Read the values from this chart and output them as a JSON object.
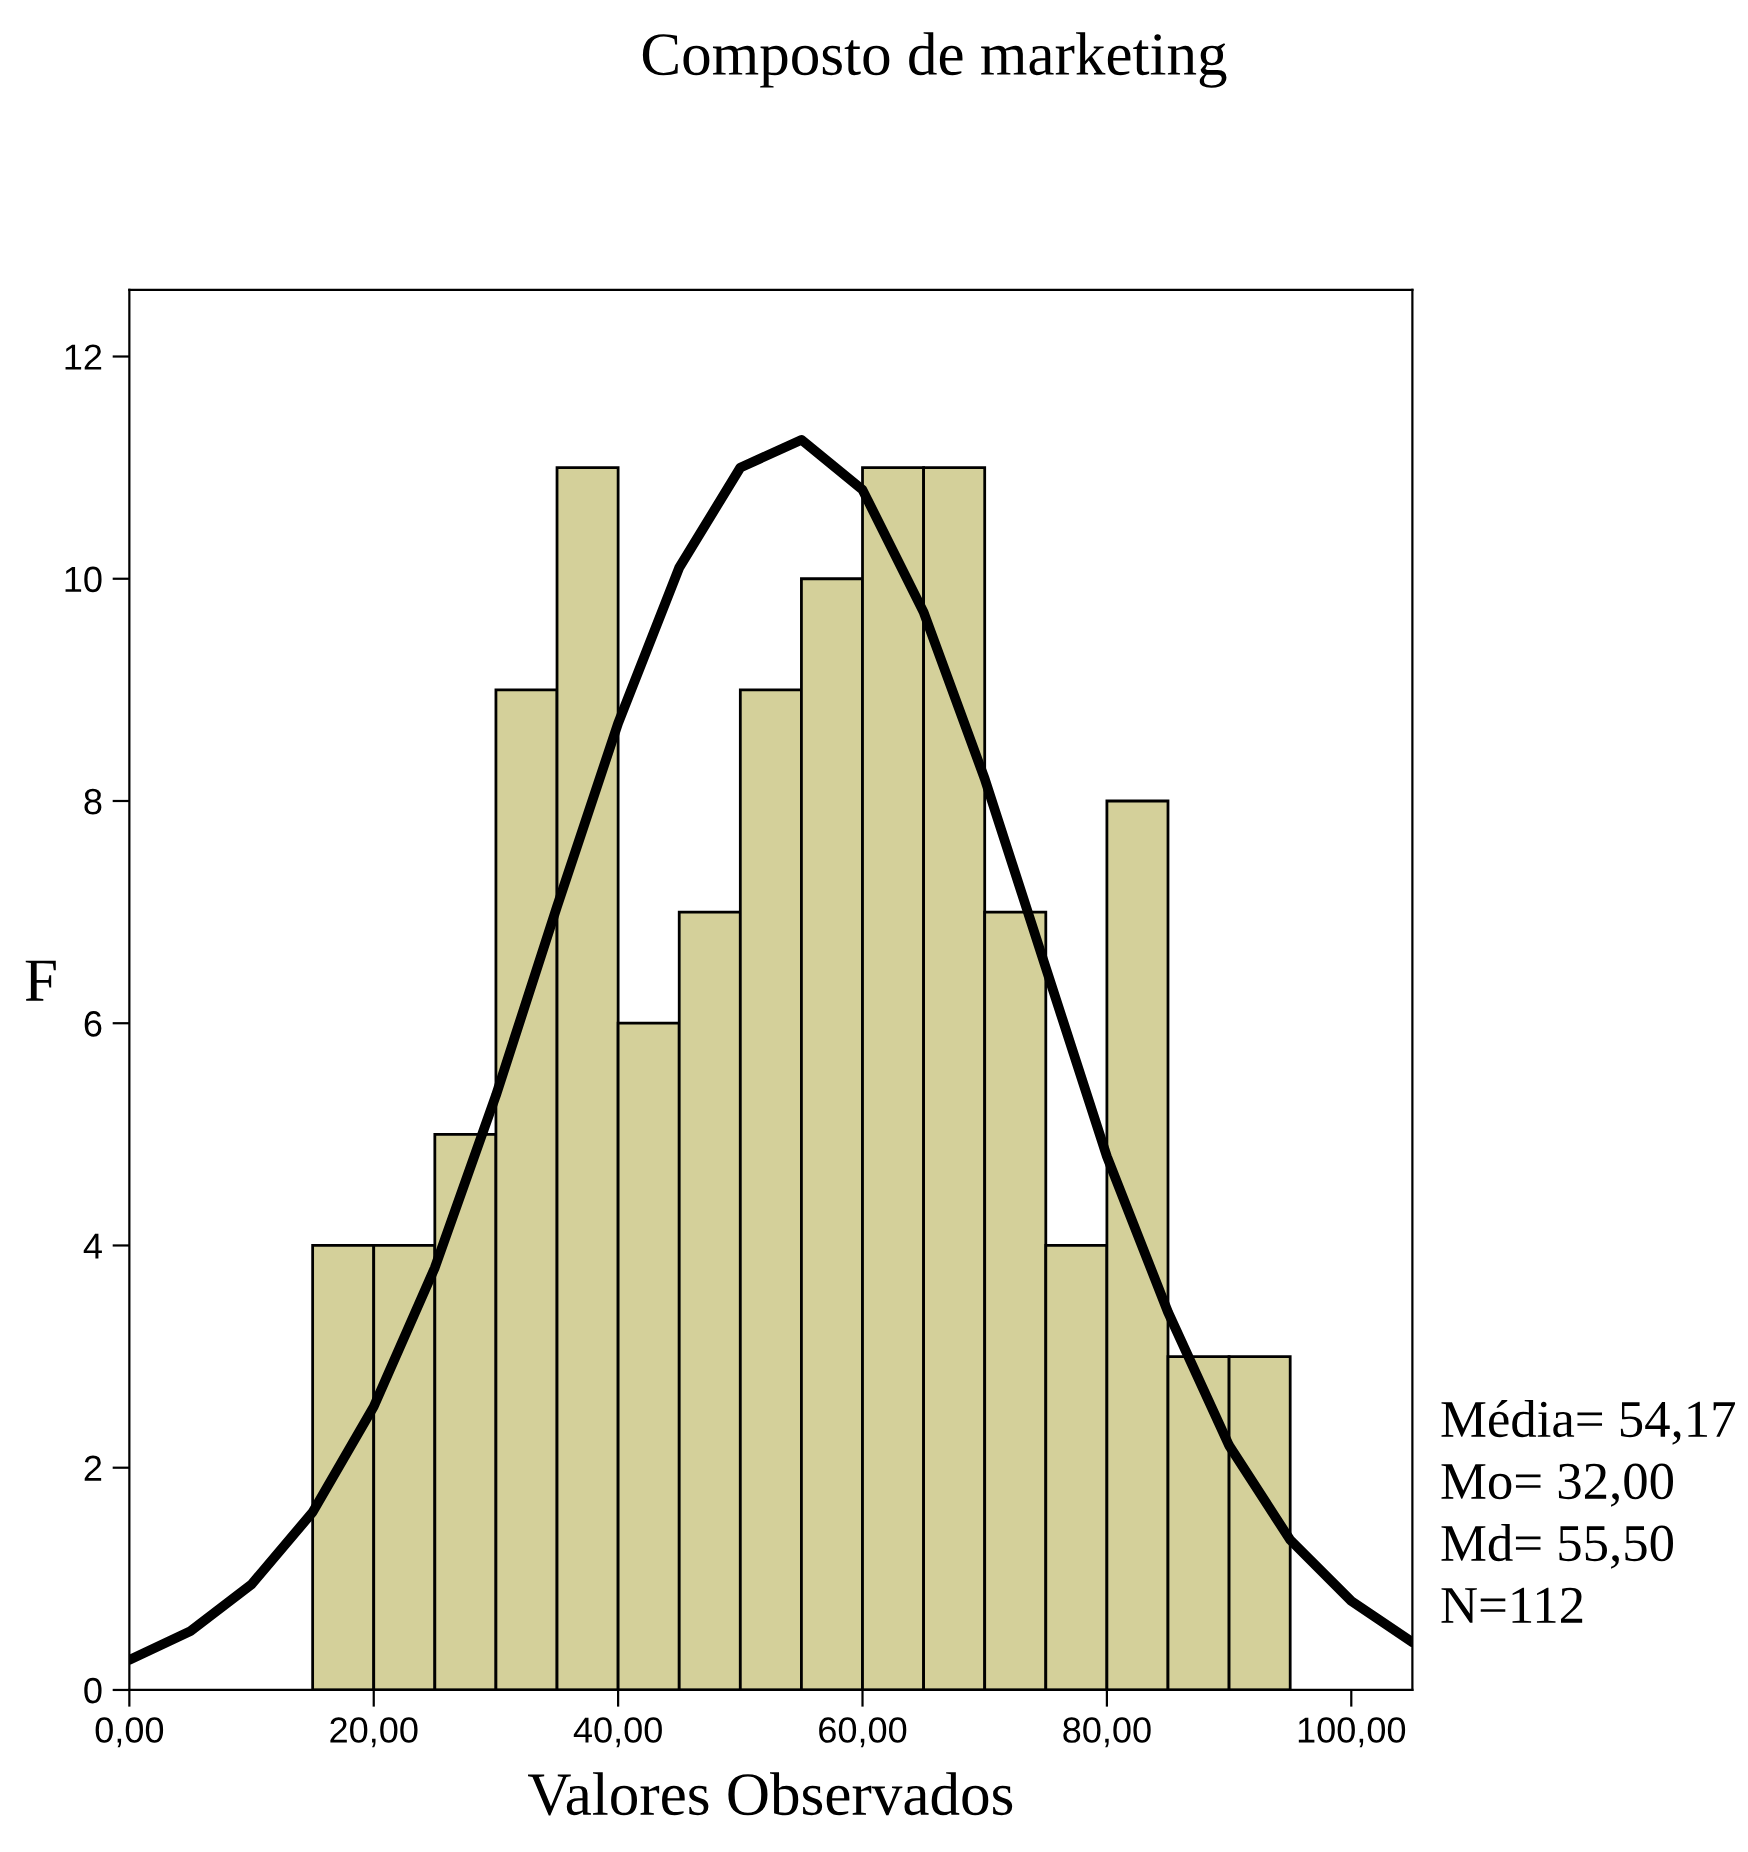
{
  "chart_data": {
    "type": "histogram",
    "title": "Composto de marketing",
    "xlabel": "Valores Observados",
    "ylabel": "F",
    "series": [
      {
        "type": "histogram",
        "color": "#d4d09a",
        "bins": [
          15,
          20,
          25,
          30,
          35,
          40,
          45,
          50,
          55,
          60,
          65,
          70,
          75,
          80,
          85,
          90,
          95
        ],
        "values": [
          4,
          4,
          5,
          9,
          11,
          6,
          7,
          9,
          10,
          11,
          11,
          7,
          4,
          8,
          3,
          3
        ]
      },
      {
        "type": "line",
        "color": "#000000",
        "x": [
          0,
          5,
          10,
          15,
          20,
          25,
          30,
          35,
          40,
          45,
          50,
          55,
          60,
          65,
          70,
          75,
          80,
          85,
          90,
          95,
          100,
          105
        ],
        "values": [
          0.27,
          0.53,
          0.95,
          1.6,
          2.55,
          3.8,
          5.35,
          7.05,
          8.7,
          10.1,
          11.0,
          11.25,
          10.8,
          9.7,
          8.2,
          6.5,
          4.8,
          3.4,
          2.2,
          1.35,
          0.8,
          0.43
        ]
      }
    ],
    "xlim": [
      0,
      105
    ],
    "ylim": [
      0,
      12.6
    ],
    "xticks": [
      {
        "value": 0,
        "label": "0,00"
      },
      {
        "value": 20,
        "label": "20,00"
      },
      {
        "value": 40,
        "label": "40,00"
      },
      {
        "value": 60,
        "label": "60,00"
      },
      {
        "value": 80,
        "label": "80,00"
      },
      {
        "value": 100,
        "label": "100,00"
      }
    ],
    "yticks": [
      0,
      2,
      4,
      6,
      8,
      10,
      12
    ],
    "annotations": [
      "Média= 54,17",
      "Mo= 32,00",
      "Md= 55,50",
      "N=112"
    ]
  }
}
